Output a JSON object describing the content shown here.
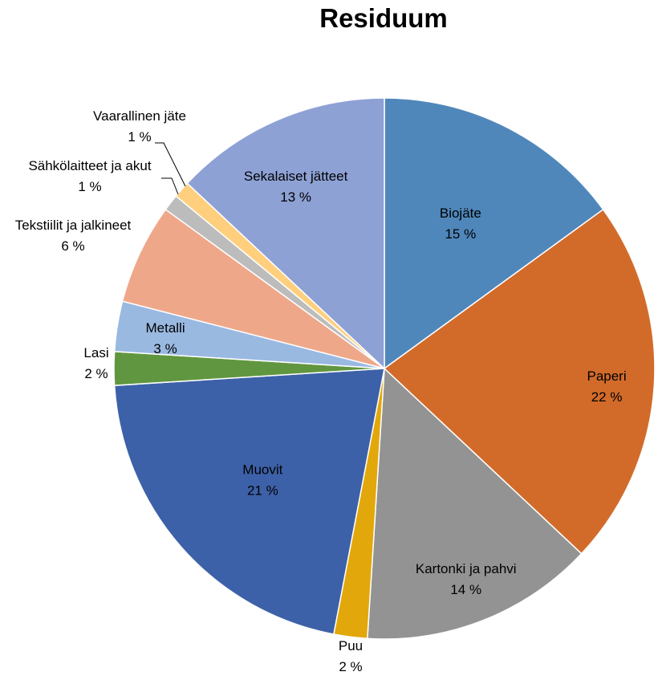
{
  "chart_data": {
    "type": "pie",
    "title": "Residuum",
    "start_angle_deg": 0,
    "direction": "clockwise",
    "slices": [
      {
        "label": "Biojäte",
        "value": 15,
        "value_label": "15 %",
        "color": "#4f87bb"
      },
      {
        "label": "Paperi",
        "value": 22,
        "value_label": "22 %",
        "color": "#d26b2a"
      },
      {
        "label": "Kartonki ja pahvi",
        "value": 14,
        "value_label": "14 %",
        "color": "#939393"
      },
      {
        "label": "Puu",
        "value": 2,
        "value_label": "2 %",
        "color": "#e2a70a"
      },
      {
        "label": "Muovit",
        "value": 21,
        "value_label": "21 %",
        "color": "#3d61a8"
      },
      {
        "label": "Lasi",
        "value": 2,
        "value_label": "2 %",
        "color": "#619640"
      },
      {
        "label": "Metalli",
        "value": 3,
        "value_label": "3 %",
        "color": "#9ab9e1"
      },
      {
        "label": "Tekstiilit ja jalkineet",
        "value": 6,
        "value_label": "6 %",
        "color": "#efa78a"
      },
      {
        "label": "Sähkölaitteet ja akut",
        "value": 1,
        "value_label": "1 %",
        "color": "#bcbcbc"
      },
      {
        "label": "Vaarallinen jäte",
        "value": 1,
        "value_label": "1 %",
        "color": "#ffcf7d"
      },
      {
        "label": "Sekalaiset jätteet",
        "value": 13,
        "value_label": "13 %",
        "color": "#8ea1d5"
      }
    ]
  }
}
